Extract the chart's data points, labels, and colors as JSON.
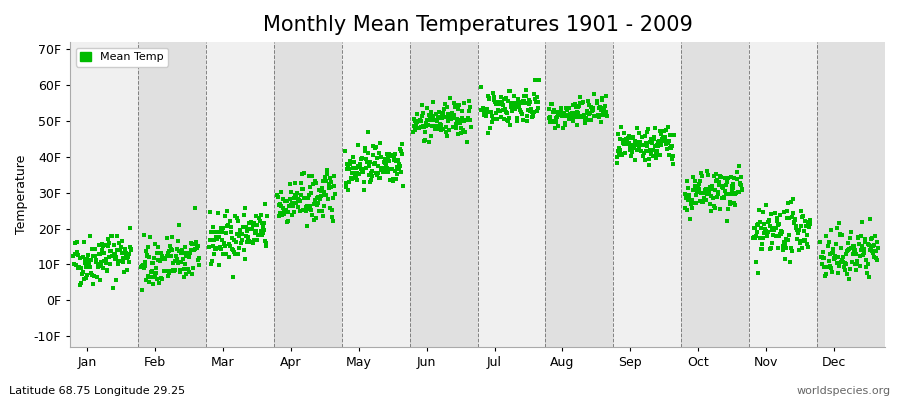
{
  "title": "Monthly Mean Temperatures 1901 - 2009",
  "ylabel": "Temperature",
  "xlabel_labels": [
    "Jan",
    "Feb",
    "Mar",
    "Apr",
    "May",
    "Jun",
    "Jul",
    "Aug",
    "Sep",
    "Oct",
    "Nov",
    "Dec"
  ],
  "ytick_labels": [
    "-10F",
    "0F",
    "10F",
    "20F",
    "30F",
    "40F",
    "50F",
    "60F",
    "70F"
  ],
  "ytick_values": [
    -10,
    0,
    10,
    20,
    30,
    40,
    50,
    60,
    70
  ],
  "ylim": [
    -13,
    72
  ],
  "n_years": 109,
  "monthly_means_F": [
    12,
    11,
    18,
    28,
    38,
    50,
    54,
    52,
    43,
    30,
    19,
    13
  ],
  "monthly_stds_F": [
    3.5,
    3.5,
    3.5,
    3.5,
    3.0,
    2.5,
    2.5,
    2.0,
    2.5,
    3.0,
    3.5,
    3.5
  ],
  "monthly_trend_F_per_century": [
    3.0,
    3.0,
    3.0,
    3.0,
    2.5,
    2.0,
    2.0,
    2.0,
    2.5,
    3.0,
    3.0,
    3.0
  ],
  "dot_color": "#00BB00",
  "dot_size": 5,
  "dot_marker": "s",
  "bg_color_light": "#F0F0F0",
  "bg_color_dark": "#E0E0E0",
  "title_fontsize": 15,
  "axis_label_fontsize": 9,
  "tick_fontsize": 9,
  "legend_label": "Mean Temp",
  "footer_left": "Latitude 68.75 Longitude 29.25",
  "footer_right": "worldspecies.org",
  "footer_fontsize": 8,
  "seed": 42
}
